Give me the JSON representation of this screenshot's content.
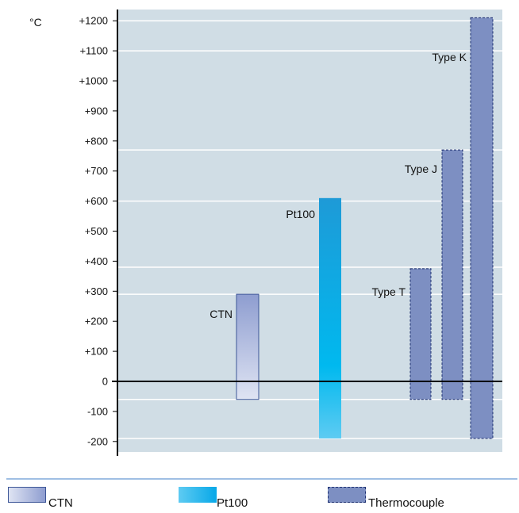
{
  "chart_data": {
    "type": "bar",
    "variant": "floating-range",
    "y_unit": "°C",
    "ylim": [
      -230,
      1250
    ],
    "yticks": [
      "+1200",
      "+1100",
      "+1000",
      "+900",
      "+800",
      "+700",
      "+600",
      "+500",
      "+400",
      "+300",
      "+200",
      "+100",
      "0",
      "-100",
      "-200"
    ],
    "ytick_values": [
      1200,
      1100,
      1000,
      900,
      800,
      700,
      600,
      500,
      400,
      300,
      200,
      100,
      0,
      -100,
      -200
    ],
    "gridlines_at": [
      1200,
      1100,
      770,
      600,
      380,
      290,
      -60,
      -190
    ],
    "series": [
      {
        "name": "CTN",
        "low": -60,
        "high": 290,
        "label": "CTN",
        "style": "ctn",
        "category": "CTN"
      },
      {
        "name": "Pt100",
        "low": -190,
        "high": 610,
        "label": "Pt100",
        "style": "pt100",
        "category": "Pt100"
      },
      {
        "name": "Type T",
        "low": -60,
        "high": 375,
        "label": "Type T",
        "style": "thermo",
        "category": "Thermocouple"
      },
      {
        "name": "Type J",
        "low": -60,
        "high": 770,
        "label": "Type J",
        "style": "thermo",
        "category": "Thermocouple"
      },
      {
        "name": "Type K",
        "low": -190,
        "high": 1210,
        "label": "Type K",
        "style": "thermo",
        "category": "Thermocouple"
      }
    ],
    "colors": {
      "plot_background": "#d0dde5",
      "gridline": "#ffffff",
      "axis": "#000000",
      "ctn_light": "#dfe4f3",
      "ctn_dark": "#8e9dd0",
      "ctn_border": "#3d5697",
      "pt100_top": "#1e9ad7",
      "pt100_mid": "#00b9ef",
      "pt100_bottom": "#5ecbf2",
      "thermo_fill": "#7d8fc2",
      "thermo_border": "#1c2f70"
    }
  },
  "legend": {
    "items": [
      {
        "label": "CTN",
        "style": "ctn"
      },
      {
        "label": "Pt100",
        "style": "pt100"
      },
      {
        "label": "Thermocouple",
        "style": "thermo"
      }
    ]
  }
}
